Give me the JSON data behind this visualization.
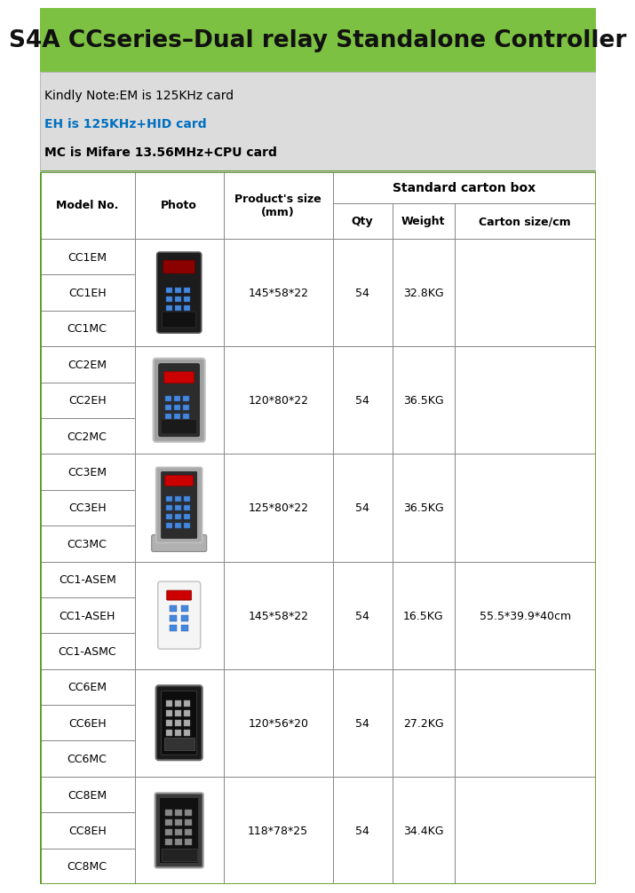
{
  "title": "S4A CCseries–Dual relay Standalone Controller",
  "title_bg": "#7DC142",
  "title_border": "#5a9a20",
  "notes": [
    {
      "text": "Kindly Note:EM is 125KHz card",
      "color": "#000000",
      "weight": "normal"
    },
    {
      "text": "EH is 125KHz+HID card",
      "color": "#0070C0",
      "weight": "bold"
    },
    {
      "text": "MC is Mifare 13.56MHz+CPU card",
      "color": "#000000",
      "weight": "bold"
    }
  ],
  "notes_bg": "#DCDCDC",
  "header_span": "Standard carton box",
  "header_col1": "Model No.",
  "header_col2": "Photo",
  "header_col3": "Product's size\n(mm)",
  "header_sub": [
    "Qty",
    "Weight",
    "Carton size/cm"
  ],
  "rows": [
    {
      "models": [
        "CC1EM",
        "CC1EH",
        "CC1MC"
      ],
      "size": "145*58*22",
      "qty": "54",
      "weight": "32.8KG"
    },
    {
      "models": [
        "CC2EM",
        "CC2EH",
        "CC2MC"
      ],
      "size": "120*80*22",
      "qty": "54",
      "weight": "36.5KG"
    },
    {
      "models": [
        "CC3EM",
        "CC3EH",
        "CC3MC"
      ],
      "size": "125*80*22",
      "qty": "54",
      "weight": "36.5KG"
    },
    {
      "models": [
        "CC1-ASEM",
        "CC1-ASEH",
        "CC1-ASMC"
      ],
      "size": "145*58*22",
      "qty": "54",
      "weight": "16.5KG"
    },
    {
      "models": [
        "CC6EM",
        "CC6EH",
        "CC6MC"
      ],
      "size": "120*56*20",
      "qty": "54",
      "weight": "27.2KG"
    },
    {
      "models": [
        "CC8EM",
        "CC8EH",
        "CC8MC"
      ],
      "size": "118*78*25",
      "qty": "54",
      "weight": "34.4KG"
    }
  ],
  "carton_size": "55.5*39.9*40cm",
  "carton_row_index": 3,
  "bg_color": "#FFFFFF",
  "outer_border": "#5a9a20",
  "table_line_color": "#888888",
  "table_border_color": "#000000",
  "header_text_color": "#000000",
  "cell_text_color": "#000000",
  "title_fontsize": 19,
  "header_fontsize": 9,
  "cell_fontsize": 9,
  "note_fontsize": 10
}
